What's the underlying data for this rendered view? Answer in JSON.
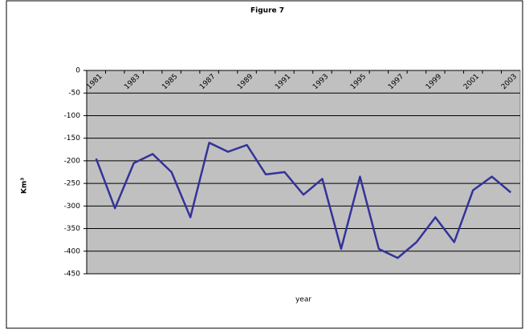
{
  "chart_data": {
    "type": "line",
    "title": "Figure 7",
    "y_label": "Km³",
    "x_label": "year",
    "categories": [
      "1981",
      null,
      "1983",
      null,
      "1985",
      null,
      "1987",
      null,
      "1989",
      null,
      "1991",
      null,
      "1993",
      null,
      "1995",
      null,
      "1997",
      null,
      "1999",
      null,
      "2001",
      null,
      "2003"
    ],
    "series": [
      {
        "name": "Km³",
        "color": "#333399",
        "values": [
          -195,
          -305,
          -205,
          -185,
          -225,
          -325,
          -160,
          -180,
          -165,
          -230,
          -225,
          -275,
          -240,
          -395,
          -235,
          -395,
          -415,
          -380,
          -325,
          -380,
          -265,
          -235,
          -270
        ]
      }
    ],
    "ylim": [
      -450,
      0
    ],
    "yticks": [
      0,
      -50,
      -100,
      -150,
      -200,
      -250,
      -300,
      -350,
      -400,
      -450
    ],
    "grid": true,
    "plot_background": "#c0c0c0"
  }
}
